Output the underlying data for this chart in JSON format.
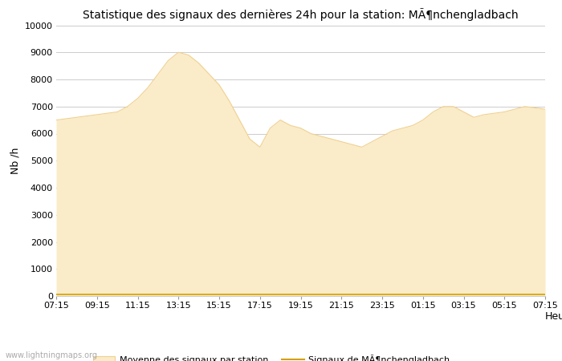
{
  "title": "Statistique des signaux des dernières 24h pour la station: MÃ¶nchengladbach",
  "xlabel": "Heure",
  "ylabel": "Nb /h",
  "ylim": [
    0,
    10000
  ],
  "yticks": [
    0,
    1000,
    2000,
    3000,
    4000,
    5000,
    6000,
    7000,
    8000,
    9000,
    10000
  ],
  "xtick_labels": [
    "07:15",
    "09:15",
    "11:15",
    "13:15",
    "15:15",
    "17:15",
    "19:15",
    "21:15",
    "23:15",
    "01:15",
    "03:15",
    "05:15",
    "07:15"
  ],
  "fill_color": "#FAECC8",
  "fill_edge_color": "#F0D090",
  "line_color": "#D4A000",
  "background_color": "#ffffff",
  "grid_color": "#cccccc",
  "watermark": "www.lightningmaps.org",
  "legend_fill_label": "Moyenne des signaux par station",
  "legend_line_label": "Signaux de MÃ¶nchengladbach",
  "x_values": [
    0,
    1,
    2,
    3,
    4,
    5,
    6,
    7,
    8,
    9,
    10,
    11,
    12,
    13,
    14,
    15,
    16,
    17,
    18,
    19,
    20,
    21,
    22,
    23,
    24,
    25,
    26,
    27,
    28,
    29,
    30,
    31,
    32,
    33,
    34,
    35,
    36,
    37,
    38,
    39,
    40,
    41,
    42,
    43,
    44,
    45,
    46,
    47,
    48
  ],
  "fill_values": [
    6500,
    6550,
    6600,
    6650,
    6700,
    6750,
    6800,
    7000,
    7300,
    7700,
    8200,
    8700,
    9000,
    8900,
    8600,
    8200,
    7800,
    7200,
    6500,
    5800,
    5500,
    6200,
    6500,
    6300,
    6200,
    6000,
    5900,
    5800,
    5700,
    5600,
    5500,
    5700,
    5900,
    6100,
    6200,
    6300,
    6500,
    6800,
    7000,
    7000,
    6800,
    6600,
    6700,
    6750,
    6800,
    6900,
    7000,
    6950,
    6900
  ],
  "line_values": [
    50,
    50,
    50,
    50,
    50,
    50,
    50,
    50,
    50,
    50,
    50,
    50,
    50,
    50,
    50,
    50,
    50,
    50,
    50,
    50,
    50,
    50,
    50,
    50,
    50,
    50,
    50,
    50,
    50,
    50,
    50,
    50,
    50,
    50,
    50,
    50,
    50,
    50,
    50,
    50,
    50,
    50,
    50,
    50,
    50,
    50,
    50,
    50,
    50
  ],
  "title_fontsize": 10,
  "tick_fontsize": 8,
  "ylabel_fontsize": 9,
  "xlabel_fontsize": 9
}
